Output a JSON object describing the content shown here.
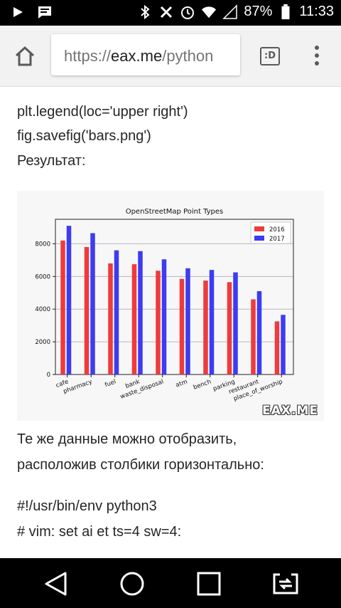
{
  "status_bar": {
    "icons": [
      "play-icon",
      "message-icon",
      "bluetooth-icon",
      "mute-icon",
      "alarm-icon",
      "wifi-icon",
      "signal-icon"
    ],
    "battery": "87%",
    "time": "11:33"
  },
  "browser": {
    "url_scheme": "https://",
    "url_host": "eax.me",
    "url_path": "/python",
    "tab_switcher_label": ":D"
  },
  "content": {
    "code_lines_top": [
      "plt.legend(loc='upper right')",
      "fig.savefig('bars.png')"
    ],
    "result_label": "Результат:",
    "paragraph_lines": [
      "Те же данные можно отобразить,",
      "расположив столбики горизонтально:"
    ],
    "code_lines_bottom": [
      "#!/usr/bin/env python3",
      "# vim: set ai et ts=4 sw=4:"
    ],
    "watermark": "EAX.ME"
  },
  "chart_data": {
    "type": "bar",
    "title": "OpenStreetMap Point Types",
    "categories": [
      "cafe",
      "pharmacy",
      "fuel",
      "bank",
      "waste_disposal",
      "atm",
      "bench",
      "parking",
      "restaurant",
      "place_of_worship"
    ],
    "series": [
      {
        "name": "2016",
        "color": "#ee3b3b",
        "values": [
          8200,
          7800,
          6800,
          6750,
          6350,
          5850,
          5750,
          5650,
          4600,
          3250
        ]
      },
      {
        "name": "2017",
        "color": "#3c3cf0",
        "values": [
          9100,
          8650,
          7600,
          7550,
          7050,
          6500,
          6400,
          6250,
          5100,
          3650
        ]
      }
    ],
    "yticks": [
      0,
      2000,
      4000,
      6000,
      8000
    ],
    "ylim": [
      0,
      9500
    ],
    "xlabel": "",
    "ylabel": "",
    "grid": "horizontal",
    "legend": "top-right"
  }
}
